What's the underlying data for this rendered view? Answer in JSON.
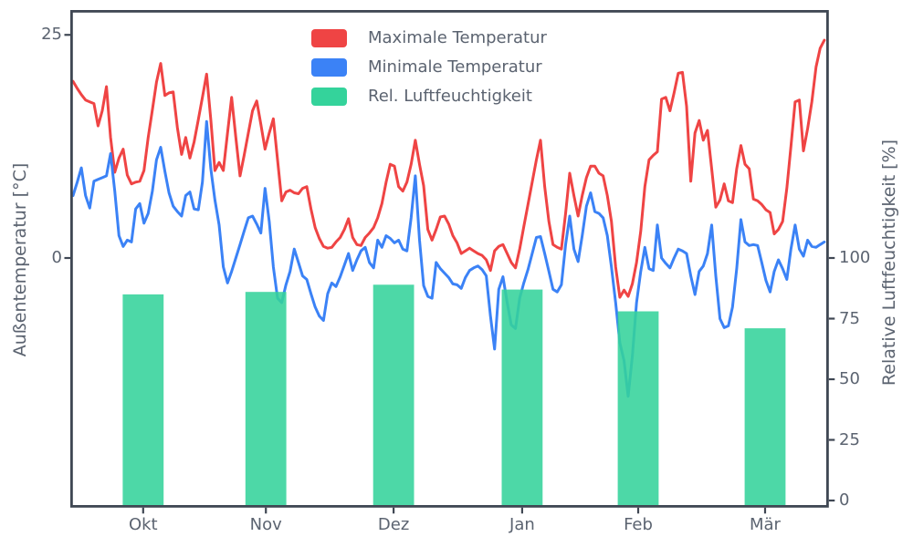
{
  "figure": {
    "background": "#ffffff",
    "text_color": "#5b6370",
    "spine_color": "#3f4753"
  },
  "axes": {
    "left": {
      "label": "Außentemperatur [°C]",
      "tick_values": [
        0,
        25
      ],
      "tick_labels": [
        "0",
        "25"
      ],
      "range": [
        -27.8,
        27.7
      ]
    },
    "right": {
      "label": "Relative Luftfeuchtigkeit [%]",
      "tick_values": [
        0,
        25,
        50,
        75,
        100
      ],
      "tick_labels": [
        "0",
        "25",
        "50",
        "75",
        "100"
      ],
      "range": [
        0,
        202
      ]
    },
    "x": {
      "tick_labels": [
        "Okt",
        "Nov",
        "Dez",
        "Jan",
        "Feb",
        "Mär"
      ],
      "tick_days": [
        16.8,
        46.2,
        76.8,
        107.6,
        135.4,
        165.8
      ]
    }
  },
  "legend": {
    "position": "upper-center-left",
    "frame": false
  },
  "chart_data": [
    {
      "type": "line",
      "name": "Maximale Temperatur",
      "color": "#ef4444",
      "axis": "left",
      "x_unit": "day index from start (early Oct = 0)",
      "x_start": 0,
      "x_step": 1,
      "values": [
        19.8,
        19.0,
        18.3,
        17.7,
        17.5,
        17.3,
        14.8,
        16.5,
        19.2,
        13.5,
        9.6,
        11.2,
        12.2,
        9.3,
        8.3,
        8.5,
        8.6,
        9.8,
        13.5,
        16.6,
        19.7,
        21.8,
        18.2,
        18.5,
        18.6,
        14.6,
        11.6,
        13.5,
        11.2,
        13.0,
        15.5,
        18.0,
        20.6,
        15.5,
        9.8,
        10.7,
        9.8,
        14.0,
        18.0,
        13.5,
        9.2,
        11.5,
        14.0,
        16.5,
        17.6,
        15.0,
        12.2,
        14.0,
        15.6,
        11.0,
        6.4,
        7.4,
        7.6,
        7.3,
        7.2,
        7.8,
        8.0,
        5.5,
        3.4,
        2.2,
        1.3,
        1.1,
        1.2,
        1.8,
        2.3,
        3.2,
        4.4,
        2.3,
        1.5,
        1.4,
        2.3,
        2.8,
        3.4,
        4.5,
        6.1,
        8.5,
        10.5,
        10.3,
        8.0,
        7.5,
        8.5,
        10.5,
        13.2,
        10.5,
        8.1,
        3.2,
        2.0,
        3.2,
        4.6,
        4.7,
        3.8,
        2.5,
        1.7,
        0.5,
        0.8,
        1.1,
        0.8,
        0.5,
        0.3,
        -0.2,
        -1.4,
        0.8,
        1.3,
        1.5,
        0.5,
        -0.5,
        -1.1,
        1.0,
        3.5,
        6.0,
        8.5,
        11.0,
        13.2,
        8.0,
        4.1,
        1.5,
        1.2,
        1.0,
        5.0,
        9.5,
        7.0,
        4.7,
        7.0,
        9.0,
        10.3,
        10.3,
        9.5,
        9.2,
        7.0,
        4.1,
        -1.0,
        -4.4,
        -3.6,
        -4.3,
        -2.9,
        -0.5,
        3.0,
        8.0,
        11.0,
        11.5,
        11.9,
        17.8,
        18.0,
        16.5,
        18.5,
        20.7,
        20.8,
        17.0,
        8.6,
        14.0,
        15.4,
        13.2,
        14.3,
        10.0,
        5.7,
        6.5,
        8.3,
        6.4,
        6.2,
        10.0,
        12.6,
        10.5,
        10.0,
        6.6,
        6.4,
        6.0,
        5.4,
        5.1,
        2.7,
        3.2,
        4.1,
        7.8,
        12.5,
        17.5,
        17.7,
        12.0,
        14.5,
        17.5,
        21.4,
        23.5,
        24.4
      ]
    },
    {
      "type": "line",
      "name": "Minimale Temperatur",
      "color": "#3b82f6",
      "axis": "left",
      "x_unit": "day index from start (early Oct = 0)",
      "x_start": 0,
      "x_step": 1,
      "values": [
        7.0,
        8.5,
        10.1,
        7.0,
        5.6,
        8.6,
        8.8,
        9.0,
        9.2,
        11.7,
        7.5,
        2.5,
        1.3,
        2.0,
        1.8,
        5.5,
        6.1,
        3.9,
        5.0,
        7.5,
        11.0,
        12.4,
        9.7,
        7.3,
        5.8,
        5.2,
        4.7,
        7.0,
        7.4,
        5.5,
        5.4,
        8.5,
        15.3,
        10.0,
        6.5,
        3.7,
        -1.0,
        -2.8,
        -1.5,
        0.0,
        1.5,
        3.0,
        4.5,
        4.7,
        3.8,
        2.8,
        7.8,
        4.1,
        -1.0,
        -4.5,
        -5.0,
        -3.0,
        -1.5,
        1.0,
        -0.5,
        -2.0,
        -2.4,
        -4.0,
        -5.5,
        -6.5,
        -7.0,
        -4.0,
        -2.8,
        -3.2,
        -2.1,
        -0.8,
        0.5,
        -1.4,
        -0.2,
        0.8,
        1.2,
        -0.5,
        -1.1,
        2.0,
        1.2,
        2.5,
        2.2,
        1.7,
        2.0,
        1.0,
        0.8,
        4.5,
        9.2,
        2.0,
        -3.1,
        -4.3,
        -4.5,
        -0.5,
        -1.2,
        -1.7,
        -2.2,
        -2.9,
        -3.0,
        -3.4,
        -2.2,
        -1.4,
        -1.1,
        -0.9,
        -1.3,
        -2.0,
        -6.5,
        -10.2,
        -3.5,
        -2.1,
        -5.0,
        -7.5,
        -7.9,
        -4.5,
        -2.8,
        -1.3,
        0.5,
        2.3,
        2.4,
        0.5,
        -1.5,
        -3.5,
        -3.8,
        -3.0,
        1.5,
        4.7,
        1.0,
        -0.4,
        2.5,
        5.8,
        7.3,
        5.2,
        5.0,
        4.5,
        2.5,
        -1.0,
        -5.0,
        -9.5,
        -11.5,
        -15.5,
        -11.0,
        -5.0,
        -1.5,
        1.2,
        -1.2,
        -1.4,
        3.7,
        0.0,
        -0.6,
        -1.1,
        0.0,
        1.0,
        0.8,
        0.5,
        -2.0,
        -4.1,
        -1.5,
        -0.9,
        0.5,
        3.7,
        -2.0,
        -6.8,
        -7.8,
        -7.6,
        -5.5,
        -1.2,
        4.3,
        1.8,
        1.4,
        1.5,
        1.4,
        -0.5,
        -2.5,
        -3.8,
        -1.5,
        -0.2,
        -1.2,
        -2.4,
        1.0,
        3.7,
        1.0,
        0.2,
        2.0,
        1.3,
        1.2,
        1.5,
        1.8
      ]
    },
    {
      "type": "bar",
      "name": "Rel. Luftfeuchtigkeit",
      "color": "#34d39b",
      "axis": "right",
      "categories": [
        "Okt",
        "Nov",
        "Dez",
        "Jan",
        "Feb",
        "Mär"
      ],
      "values": [
        85,
        86,
        89,
        87,
        78,
        71
      ],
      "bar_center_days": [
        16.8,
        46.2,
        76.8,
        107.6,
        135.4,
        165.8
      ],
      "bar_width_days": 9.8
    }
  ]
}
